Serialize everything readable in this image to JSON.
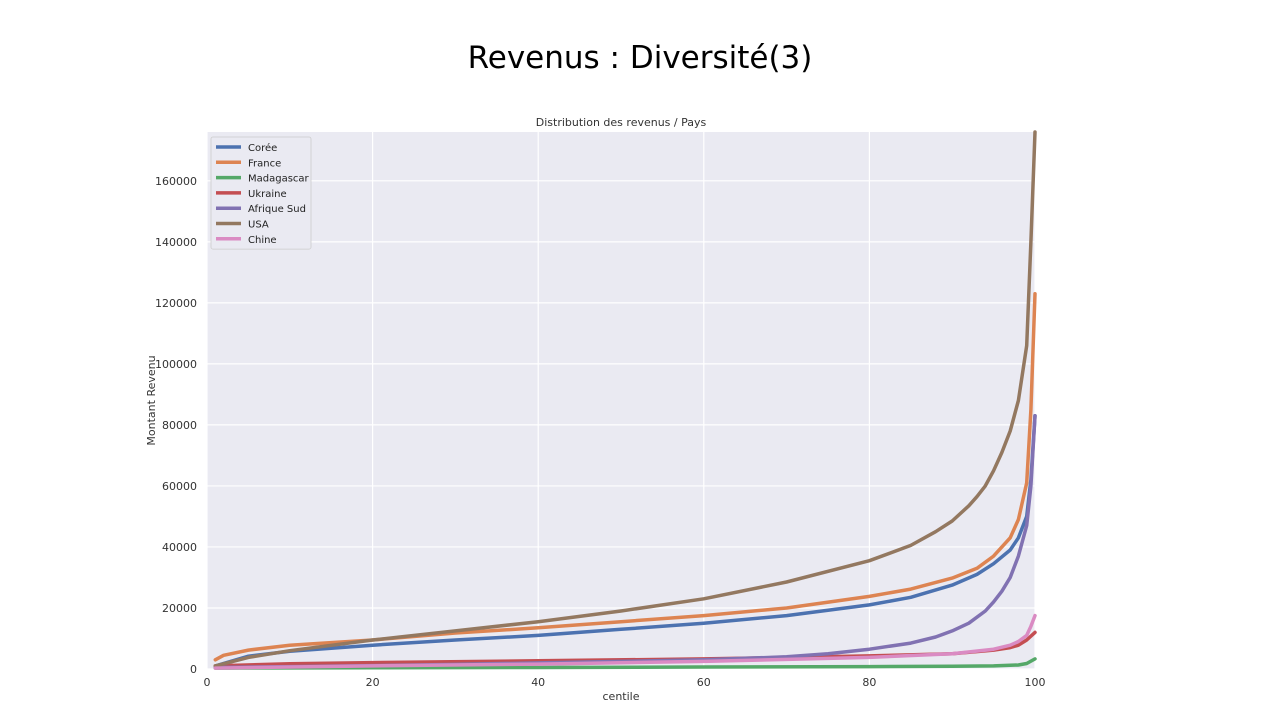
{
  "slide": {
    "title": "Revenus :  Diversité(3)"
  },
  "chart_data": {
    "type": "line",
    "title": "Distribution des revenus / Pays",
    "xlabel": "centile",
    "ylabel": "Montant Revenu",
    "xlim": [
      0,
      100
    ],
    "ylim": [
      0,
      176000
    ],
    "xticks": [
      0,
      20,
      40,
      60,
      80,
      100
    ],
    "yticks": [
      0,
      20000,
      40000,
      60000,
      80000,
      100000,
      120000,
      140000,
      160000
    ],
    "grid": true,
    "legend_position": "top-left",
    "background_color": "#eaeaf2",
    "series": [
      {
        "name": "Corée",
        "color": "#4c72b0",
        "x": [
          1,
          5,
          10,
          20,
          30,
          40,
          50,
          60,
          70,
          80,
          85,
          90,
          93,
          95,
          97,
          98,
          99,
          99.5,
          100
        ],
        "values": [
          1000,
          4200,
          5800,
          7800,
          9500,
          11000,
          13000,
          15000,
          17500,
          21000,
          23500,
          27500,
          31000,
          34500,
          39000,
          43000,
          50000,
          62000,
          83000
        ]
      },
      {
        "name": "France",
        "color": "#dd8452",
        "x": [
          1,
          2,
          5,
          10,
          20,
          30,
          40,
          50,
          60,
          70,
          80,
          85,
          90,
          93,
          95,
          97,
          98,
          99,
          99.5,
          100
        ],
        "values": [
          3000,
          4500,
          6200,
          7800,
          9500,
          11800,
          13500,
          15500,
          17500,
          20000,
          23800,
          26200,
          29800,
          33000,
          37000,
          43000,
          49000,
          61000,
          85000,
          123000
        ]
      },
      {
        "name": "Madagascar",
        "color": "#55a868",
        "x": [
          1,
          20,
          40,
          60,
          80,
          90,
          95,
          98,
          99,
          100
        ],
        "values": [
          300,
          400,
          500,
          650,
          800,
          900,
          1000,
          1300,
          1800,
          3300
        ]
      },
      {
        "name": "Ukraine",
        "color": "#c44e52",
        "x": [
          1,
          10,
          20,
          40,
          60,
          80,
          90,
          95,
          97,
          98,
          99,
          100
        ],
        "values": [
          1000,
          1700,
          2100,
          2700,
          3300,
          4300,
          5000,
          6200,
          7000,
          7800,
          9500,
          12000
        ]
      },
      {
        "name": "Afrique Sud",
        "color": "#8172b2",
        "x": [
          1,
          10,
          20,
          30,
          40,
          50,
          60,
          70,
          75,
          80,
          85,
          88,
          90,
          92,
          94,
          95,
          96,
          97,
          98,
          99,
          99.5,
          100
        ],
        "values": [
          500,
          800,
          1100,
          1500,
          2000,
          2500,
          3000,
          4000,
          5000,
          6500,
          8500,
          10500,
          12500,
          15000,
          19000,
          22000,
          25500,
          30000,
          37000,
          47000,
          60000,
          83000
        ]
      },
      {
        "name": "USA",
        "color": "#937860",
        "x": [
          1,
          5,
          10,
          20,
          30,
          40,
          50,
          60,
          70,
          80,
          85,
          88,
          90,
          92,
          93,
          94,
          95,
          96,
          97,
          98,
          99,
          99.5,
          100
        ],
        "values": [
          1000,
          3800,
          6000,
          9500,
          12500,
          15500,
          19000,
          23000,
          28500,
          35500,
          40500,
          45000,
          48500,
          53500,
          56500,
          60000,
          65000,
          71000,
          78000,
          88000,
          106000,
          140000,
          176000
        ]
      },
      {
        "name": "Chine",
        "color": "#da8bc3",
        "x": [
          1,
          20,
          40,
          60,
          80,
          90,
          95,
          97,
          98,
          99,
          99.5,
          100
        ],
        "values": [
          300,
          1000,
          1600,
          2500,
          3800,
          5000,
          6500,
          7800,
          9000,
          11000,
          14000,
          17500
        ]
      }
    ]
  }
}
